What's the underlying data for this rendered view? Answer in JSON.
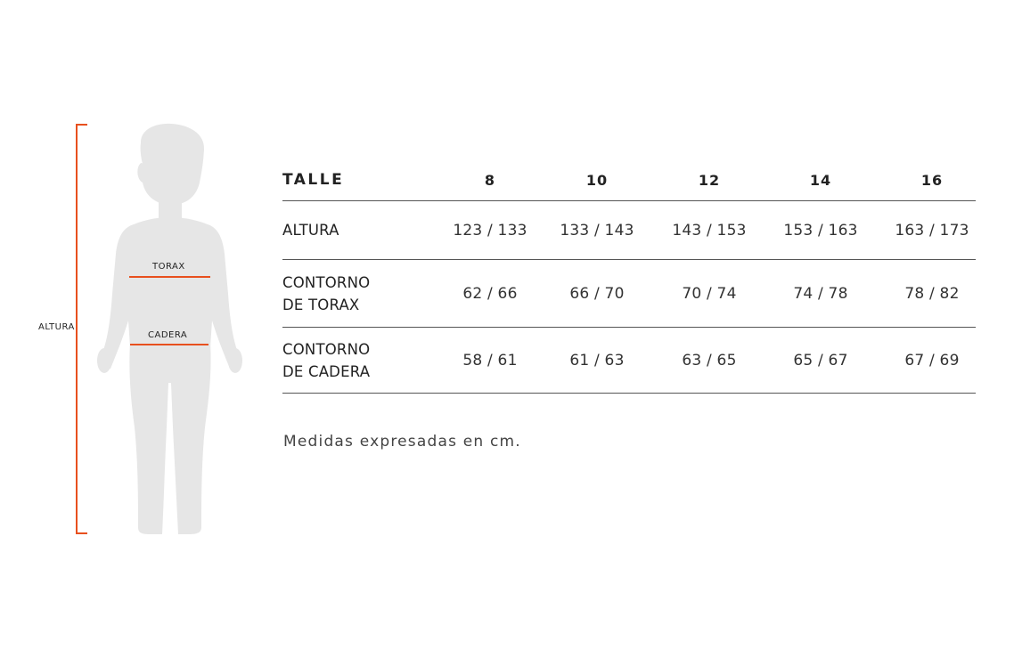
{
  "figure": {
    "label_altura": "ALTURA",
    "label_torax": "TORAX",
    "label_cadera": "CADERA",
    "silhouette_color": "#e6e6e6",
    "accent_color": "#e8501e"
  },
  "table": {
    "header": {
      "label": "TALLE",
      "sizes": [
        "8",
        "10",
        "12",
        "14",
        "16"
      ]
    },
    "rows": [
      {
        "label_lines": [
          "ALTURA"
        ],
        "values": [
          "123 / 133",
          "133 / 143",
          "143 / 153",
          "153 / 163",
          "163 / 173"
        ]
      },
      {
        "label_lines": [
          "CONTORNO",
          "DE TORAX"
        ],
        "values": [
          "62 / 66",
          "66 / 70",
          "70 / 74",
          "74 / 78",
          "78 / 82"
        ]
      },
      {
        "label_lines": [
          "CONTORNO",
          "DE CADERA"
        ],
        "values": [
          "58 / 61",
          "61 / 63",
          "63 / 65",
          "65 / 67",
          "67 / 69"
        ]
      }
    ]
  },
  "footnote": "Medidas expresadas en cm."
}
